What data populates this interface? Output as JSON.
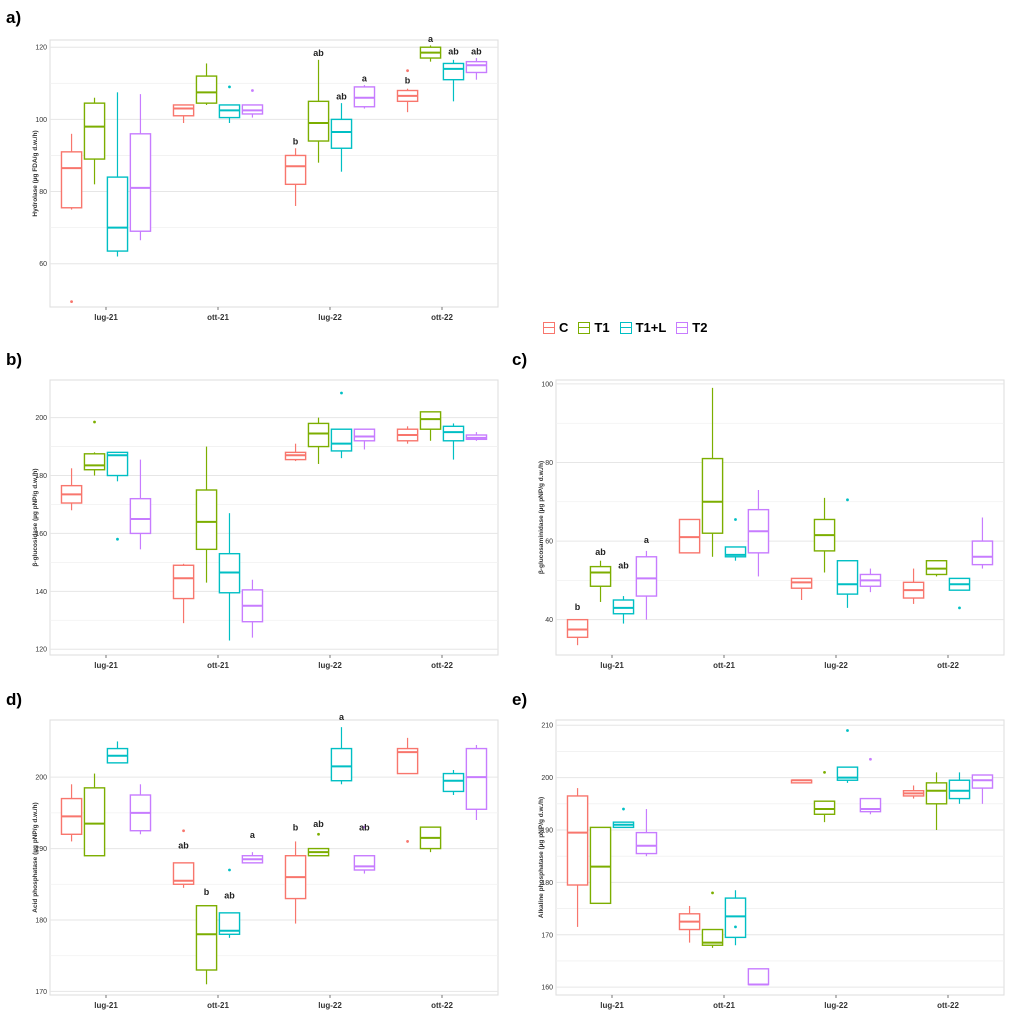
{
  "panels": {
    "a": "a)",
    "b": "b)",
    "c": "c)",
    "d": "d)",
    "e": "e)"
  },
  "legend": {
    "title": "",
    "items": [
      {
        "label": "C",
        "color": "#f8766d"
      },
      {
        "label": "T1",
        "color": "#7cae00"
      },
      {
        "label": "T1+L",
        "color": "#00bfc4"
      },
      {
        "label": "T2",
        "color": "#c77cff"
      }
    ]
  },
  "chart_data": [
    {
      "id": "a",
      "type": "boxplot",
      "ylabel": "Hydrolase (µg FDA/g d.w./h)",
      "categories": [
        "lug-21",
        "ott-21",
        "lug-22",
        "ott-22"
      ],
      "yticks": [
        60,
        80,
        100,
        120
      ],
      "ylim": [
        48,
        122
      ],
      "series": [
        {
          "name": "C",
          "boxes": [
            [
              75,
              75.5,
              86.5,
              91,
              96,
              [
                49.5
              ]
            ],
            [
              99,
              101,
              103,
              104,
              104,
              []
            ],
            [
              76,
              82,
              87,
              90,
              92,
              []
            ],
            [
              102,
              105,
              106.5,
              108,
              108.5,
              [
                113.5
              ]
            ]
          ]
        },
        {
          "name": "T1",
          "boxes": [
            [
              82,
              89,
              98,
              104.5,
              106,
              []
            ],
            [
              104,
              104.5,
              107.5,
              112,
              115.5,
              []
            ],
            [
              88,
              94,
              99,
              105,
              116.5,
              []
            ],
            [
              116,
              117,
              118.5,
              120,
              120.5,
              []
            ]
          ]
        },
        {
          "name": "T1+L",
          "boxes": [
            [
              62,
              63.5,
              70,
              84,
              107.5,
              []
            ],
            [
              99,
              100.5,
              102.5,
              104,
              104,
              [
                109
              ]
            ],
            [
              85.5,
              92,
              96.5,
              100,
              104.5,
              []
            ],
            [
              105,
              111,
              114,
              115.5,
              116.5,
              []
            ]
          ]
        },
        {
          "name": "T2",
          "boxes": [
            [
              66.5,
              69,
              81,
              96,
              107,
              []
            ],
            [
              100.5,
              101.5,
              102.5,
              104,
              104,
              [
                108
              ]
            ],
            [
              103,
              103.5,
              106,
              109,
              109.5,
              []
            ],
            [
              111,
              113,
              115,
              116,
              117,
              []
            ]
          ]
        }
      ],
      "letters": [
        {
          "series": "C",
          "category": "lug-22",
          "text": "b",
          "y": 93
        },
        {
          "series": "T1",
          "category": "lug-22",
          "text": "ab",
          "y": 117.5
        },
        {
          "series": "T1+L",
          "category": "lug-22",
          "text": "ab",
          "y": 105.5
        },
        {
          "series": "T2",
          "category": "lug-22",
          "text": "a",
          "y": 110.5
        },
        {
          "series": "C",
          "category": "ott-22",
          "text": "b",
          "y": 110
        },
        {
          "series": "T1",
          "category": "ott-22",
          "text": "a",
          "y": 121.5
        },
        {
          "series": "T1+L",
          "category": "ott-22",
          "text": "ab",
          "y": 118
        },
        {
          "series": "T2",
          "category": "ott-22",
          "text": "ab",
          "y": 118
        }
      ]
    },
    {
      "id": "b",
      "type": "boxplot",
      "ylabel": "β-glucosidase (µg pNP/g d.w./h)",
      "categories": [
        "lug-21",
        "ott-21",
        "lug-22",
        "ott-22"
      ],
      "yticks": [
        120,
        140,
        160,
        180,
        200
      ],
      "ylim": [
        118,
        213
      ],
      "series": [
        {
          "name": "C",
          "boxes": [
            [
              168,
              170.5,
              173.5,
              176.5,
              182.5,
              []
            ],
            [
              129,
              137.5,
              144.5,
              149,
              149.5,
              []
            ],
            [
              185,
              185.5,
              187,
              188,
              191,
              []
            ],
            [
              191,
              192,
              194,
              196,
              197,
              []
            ]
          ]
        },
        {
          "name": "T1",
          "boxes": [
            [
              180,
              182,
              183.5,
              187.5,
              188,
              [
                198.5
              ]
            ],
            [
              143,
              154.5,
              164,
              175,
              190,
              []
            ],
            [
              184,
              190,
              194.5,
              198,
              200,
              []
            ],
            [
              192,
              196,
              199.5,
              202,
              202,
              []
            ]
          ]
        },
        {
          "name": "T1+L",
          "boxes": [
            [
              178,
              180,
              187,
              188,
              188,
              [
                158
              ]
            ],
            [
              123,
              139.5,
              146.5,
              153,
              167,
              []
            ],
            [
              186,
              188.5,
              191,
              196,
              196,
              [
                208.5
              ]
            ],
            [
              185.5,
              192,
              195,
              197,
              198,
              []
            ]
          ]
        },
        {
          "name": "T2",
          "boxes": [
            [
              154.5,
              160,
              165,
              172,
              185.5,
              []
            ],
            [
              124,
              129.5,
              135,
              140.5,
              144,
              []
            ],
            [
              189,
              192,
              193.5,
              196,
              196,
              []
            ],
            [
              192,
              192.5,
              193,
              194,
              195,
              []
            ]
          ]
        }
      ],
      "letters": []
    },
    {
      "id": "c",
      "type": "boxplot",
      "ylabel": "β-glucosaminidase (µg pNP/g d.w./h)",
      "categories": [
        "lug-21",
        "ott-21",
        "lug-22",
        "ott-22"
      ],
      "yticks": [
        40,
        60,
        80,
        100
      ],
      "ylim": [
        31,
        101
      ],
      "series": [
        {
          "name": "C",
          "boxes": [
            [
              33.5,
              35.5,
              37.5,
              40,
              40,
              []
            ],
            [
              57,
              57,
              61,
              65.5,
              65.5,
              []
            ],
            [
              45,
              48,
              49.5,
              50.5,
              50.5,
              []
            ],
            [
              44,
              45.5,
              47.5,
              49.5,
              53,
              []
            ]
          ]
        },
        {
          "name": "T1",
          "boxes": [
            [
              44.5,
              48.5,
              52,
              53.5,
              55,
              []
            ],
            [
              56,
              62,
              70,
              81,
              99,
              []
            ],
            [
              52,
              57.5,
              61.5,
              65.5,
              71,
              []
            ],
            [
              51,
              51.5,
              53,
              55,
              55,
              []
            ]
          ]
        },
        {
          "name": "T1+L",
          "boxes": [
            [
              39,
              41.5,
              43,
              45,
              46,
              []
            ],
            [
              55,
              56,
              56.5,
              58.5,
              58.5,
              [
                65.5
              ]
            ],
            [
              43,
              46.5,
              49,
              55,
              55,
              [
                70.5
              ]
            ],
            [
              47.5,
              47.5,
              49,
              50.5,
              50.5,
              [
                43
              ]
            ]
          ]
        },
        {
          "name": "T2",
          "boxes": [
            [
              40,
              46,
              50.5,
              56,
              57.5,
              []
            ],
            [
              51,
              57,
              62.5,
              68,
              73,
              []
            ],
            [
              47,
              48.5,
              50,
              51.5,
              53,
              []
            ],
            [
              53,
              54,
              56,
              60,
              66,
              []
            ]
          ]
        }
      ],
      "letters": [
        {
          "series": "C",
          "category": "lug-21",
          "text": "b",
          "y": 42.5
        },
        {
          "series": "T1",
          "category": "lug-21",
          "text": "ab",
          "y": 56.5
        },
        {
          "series": "T1+L",
          "category": "lug-21",
          "text": "ab",
          "y": 53
        },
        {
          "series": "T2",
          "category": "lug-21",
          "text": "a",
          "y": 59.5
        }
      ]
    },
    {
      "id": "d",
      "type": "boxplot",
      "ylabel": "Acid phosphatase (µg pNP/g d.w./h)",
      "categories": [
        "lug-21",
        "ott-21",
        "lug-22",
        "ott-22"
      ],
      "yticks": [
        170,
        180,
        190,
        200
      ],
      "ylim": [
        169.5,
        208
      ],
      "series": [
        {
          "name": "C",
          "boxes": [
            [
              191,
              192,
              194.5,
              197,
              199,
              []
            ],
            [
              184.5,
              185,
              185.5,
              188,
              188,
              [
                192.5
              ]
            ],
            [
              179.5,
              183,
              186,
              189,
              191,
              []
            ],
            [
              200.5,
              200.5,
              203.5,
              204,
              205.5,
              [
                191
              ]
            ]
          ]
        },
        {
          "name": "T1",
          "boxes": [
            [
              189,
              189,
              193.5,
              198.5,
              200.5,
              []
            ],
            [
              171,
              173,
              178,
              182,
              182,
              []
            ],
            [
              189,
              189,
              189.5,
              190,
              190,
              [
                192
              ]
            ],
            [
              189.5,
              190,
              191.5,
              193,
              193,
              []
            ]
          ]
        },
        {
          "name": "T1+L",
          "boxes": [
            [
              202,
              202,
              203,
              204,
              205,
              []
            ],
            [
              177.5,
              178,
              178.5,
              181,
              181,
              [
                187
              ]
            ],
            [
              199,
              199.5,
              201.5,
              204,
              207,
              []
            ],
            [
              197.5,
              198,
              199.5,
              200.5,
              201,
              []
            ]
          ]
        },
        {
          "name": "T2",
          "boxes": [
            [
              192,
              192.5,
              195,
              197.5,
              199,
              []
            ],
            [
              188,
              188,
              188.5,
              189,
              189.5,
              []
            ],
            [
              186.5,
              187,
              187.5,
              189,
              189,
              [
                193
              ]
            ],
            [
              194,
              195.5,
              200,
              204,
              204.5,
              []
            ]
          ]
        }
      ],
      "letters": [
        {
          "series": "C",
          "category": "ott-21",
          "text": "ab",
          "y": 190
        },
        {
          "series": "T1",
          "category": "ott-21",
          "text": "b",
          "y": 183.5
        },
        {
          "series": "T1+L",
          "category": "ott-21",
          "text": "ab",
          "y": 183
        },
        {
          "series": "T2",
          "category": "ott-21",
          "text": "a",
          "y": 191.5
        },
        {
          "series": "C",
          "category": "lug-22",
          "text": "b",
          "y": 192.5
        },
        {
          "series": "T1",
          "category": "lug-22",
          "text": "ab",
          "y": 193
        },
        {
          "series": "T1+L",
          "category": "lug-22",
          "text": "a",
          "y": 208
        },
        {
          "series": "T2",
          "category": "lug-22",
          "text": "ab",
          "y": 192.5
        }
      ]
    },
    {
      "id": "e",
      "type": "boxplot",
      "ylabel": "Alkaline phosphatase (µg pNP/g d.w./h)",
      "categories": [
        "lug-21",
        "ott-21",
        "lug-22",
        "ott-22"
      ],
      "yticks": [
        160,
        170,
        180,
        190,
        200,
        210
      ],
      "ylim": [
        158.5,
        211
      ],
      "series": [
        {
          "name": "C",
          "boxes": [
            [
              171.5,
              179.5,
              189.5,
              196.5,
              198,
              []
            ],
            [
              168.5,
              171,
              172.5,
              174,
              175.5,
              []
            ],
            [
              199,
              199,
              199.5,
              199.5,
              199.5,
              []
            ],
            [
              196,
              196.5,
              197,
              197.5,
              198.5,
              []
            ]
          ]
        },
        {
          "name": "T1",
          "boxes": [
            [
              176,
              176,
              183,
              190.5,
              190.5,
              []
            ],
            [
              167.5,
              168,
              168.5,
              171,
              171,
              [
                178
              ]
            ],
            [
              191.5,
              193,
              194,
              195.5,
              195.5,
              [
                201
              ]
            ],
            [
              190,
              195,
              197.5,
              199,
              201,
              []
            ]
          ]
        },
        {
          "name": "T1+L",
          "boxes": [
            [
              190.5,
              190.5,
              191,
              191.5,
              191.5,
              [
                194
              ]
            ],
            [
              168,
              169.5,
              173.5,
              177,
              178.5,
              [
                171.5
              ]
            ],
            [
              199,
              199.5,
              200,
              202,
              202,
              [
                209
              ]
            ],
            [
              195,
              196,
              197.5,
              199.5,
              201,
              []
            ]
          ]
        },
        {
          "name": "T2",
          "boxes": [
            [
              185,
              185.5,
              187,
              189.5,
              194,
              []
            ],
            [
              160.5,
              160.5,
              160.5,
              163.5,
              163.5,
              []
            ],
            [
              193,
              193.5,
              194,
              196,
              196,
              [
                203.5
              ]
            ],
            [
              195,
              198,
              199.5,
              200.5,
              200.5,
              []
            ]
          ]
        }
      ],
      "letters": []
    }
  ]
}
